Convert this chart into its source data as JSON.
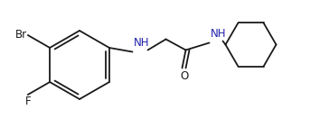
{
  "background_color": "#ffffff",
  "line_color": "#1a1a1a",
  "label_color": "#1a1a1a",
  "nh_color": "#2222aa",
  "o_color": "#1a1a1a",
  "br_label": "Br",
  "f_label": "F",
  "nh_label": "NH",
  "o_label": "O",
  "figsize": [
    3.64,
    1.52
  ],
  "dpi": 100,
  "lw": 1.3
}
